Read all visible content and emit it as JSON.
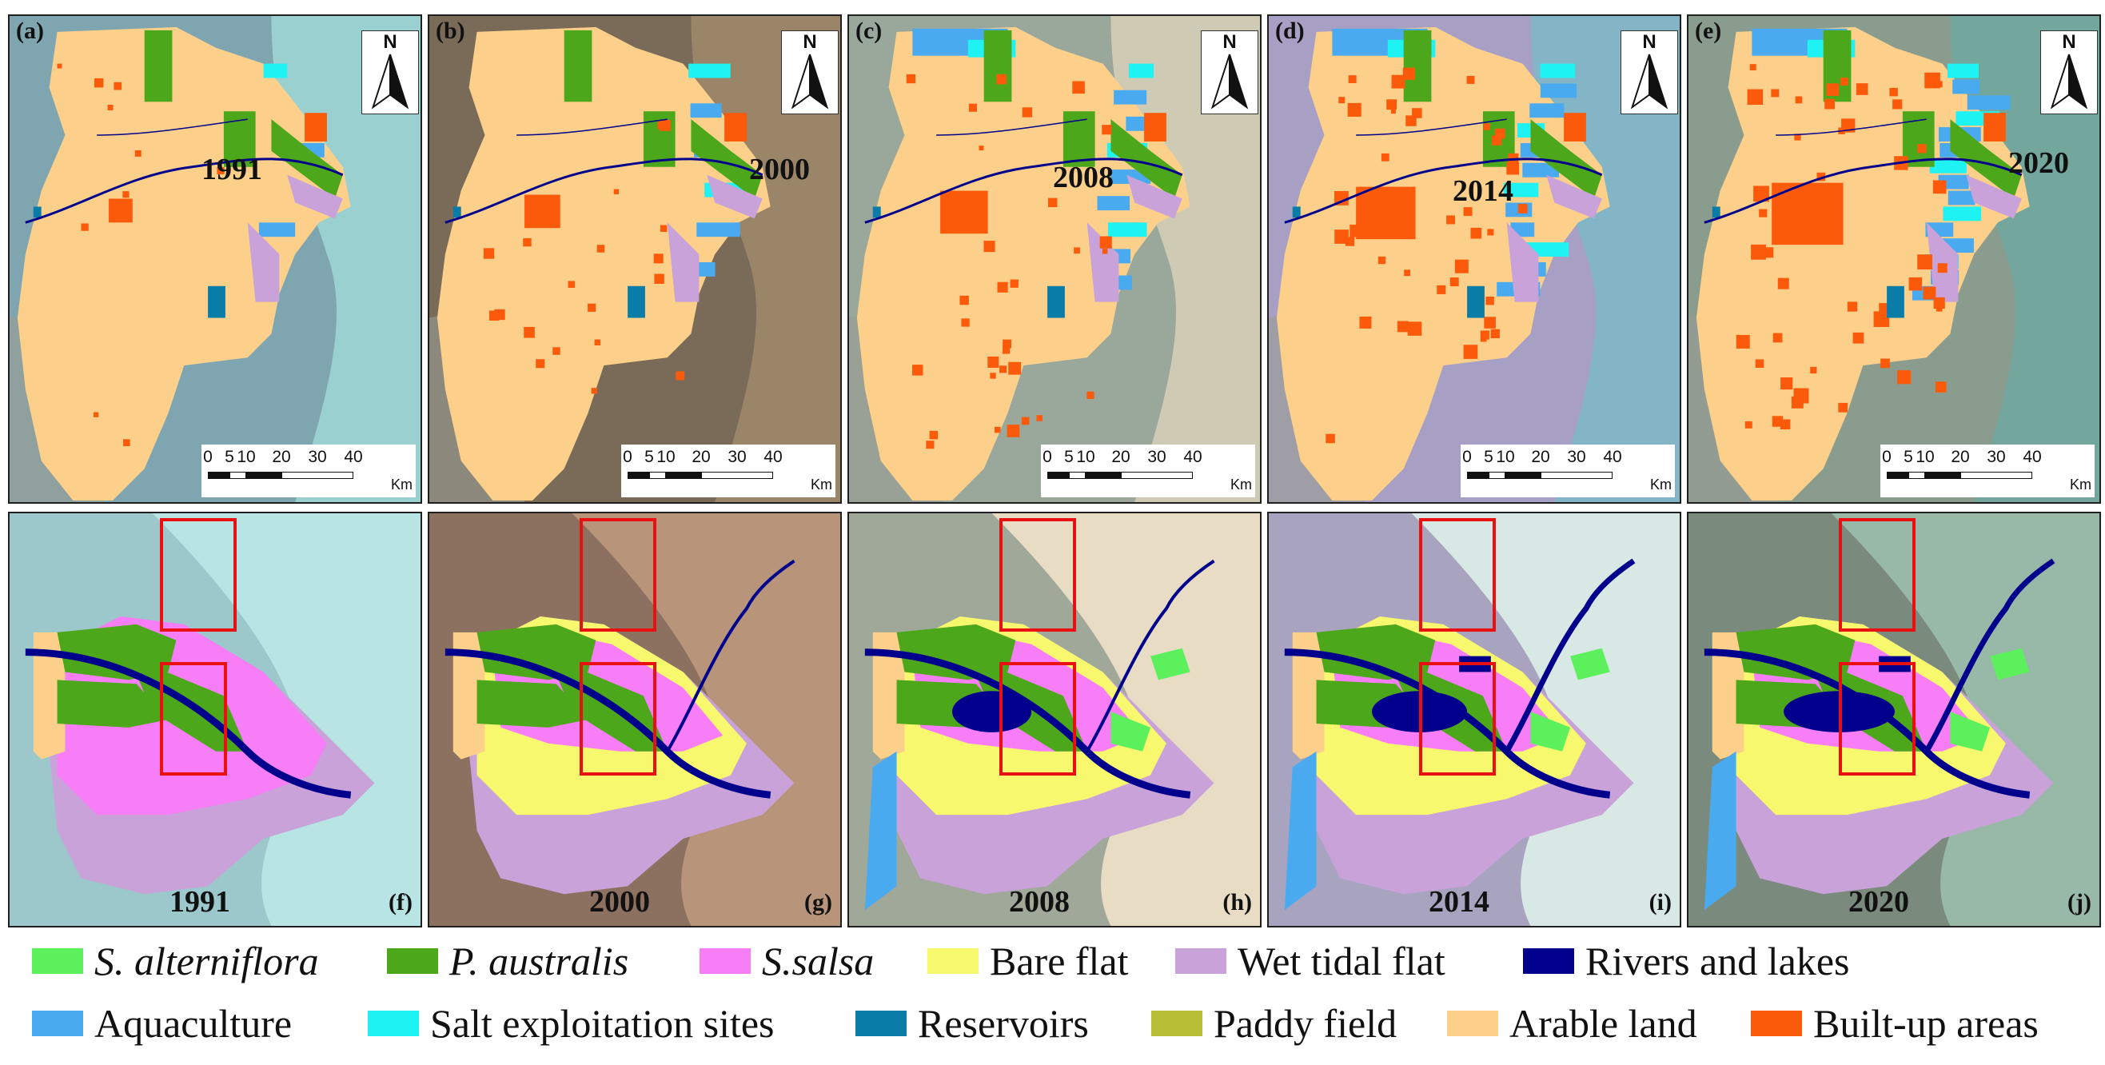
{
  "top_row": [
    {
      "label": "(a)",
      "year": "1991",
      "bg": "#7fa6b0",
      "coast": "#9fd8d6"
    },
    {
      "label": "(b)",
      "year": "2000",
      "bg": "#7a6a58",
      "coast": "#a08a6c"
    },
    {
      "label": "(c)",
      "year": "2008",
      "bg": "#9aa89c",
      "coast": "#d8d0b8"
    },
    {
      "label": "(d)",
      "year": "2014",
      "bg": "#a8a0c4",
      "coast": "#7cb8c8"
    },
    {
      "label": "(e)",
      "year": "2020",
      "bg": "#8a9c8e",
      "coast": "#6ea8a0"
    }
  ],
  "bottom_row": [
    {
      "label": "(f)",
      "year": "1991",
      "bg": "#9cc8cc",
      "water": "#b8e4e4"
    },
    {
      "label": "(g)",
      "year": "2000",
      "bg": "#8c7060",
      "water": "#b8957a"
    },
    {
      "label": "(h)",
      "year": "2008",
      "bg": "#a0a89a",
      "water": "#e8dcc4"
    },
    {
      "label": "(i)",
      "year": "2014",
      "bg": "#a8a4c0",
      "water": "#d8e8e4"
    },
    {
      "label": "(j)",
      "year": "2020",
      "bg": "#7a8a7c",
      "water": "#98b8a8"
    }
  ],
  "north_label": "N",
  "scale": {
    "ticks": [
      "0",
      "5",
      "10",
      "20",
      "30",
      "40"
    ],
    "unit": "Km"
  },
  "legend": [
    {
      "label": "S. alterniflora",
      "color": "#5cf05c",
      "italic": true
    },
    {
      "label": "P. australis",
      "color": "#4ca81a",
      "italic": true
    },
    {
      "label": "S.salsa",
      "color": "#f77ef7",
      "italic": true
    },
    {
      "label": "Bare flat",
      "color": "#f8f86e",
      "italic": false
    },
    {
      "label": "Wet tidal flat",
      "color": "#c8a2d8",
      "italic": false
    },
    {
      "label": "Rivers and lakes",
      "color": "#00008c",
      "italic": false
    },
    {
      "label": "Aquaculture",
      "color": "#4aaaf0",
      "italic": false
    },
    {
      "label": "Salt exploitation sites",
      "color": "#1ef2f2",
      "italic": false
    },
    {
      "label": "Reservoirs",
      "color": "#0a7ca8",
      "italic": false
    },
    {
      "label": "Paddy field",
      "color": "#b8c038",
      "italic": false
    },
    {
      "label": "Arable land",
      "color": "#fcd08a",
      "italic": false
    },
    {
      "label": "Built-up areas",
      "color": "#fa5a0a",
      "italic": false
    }
  ]
}
